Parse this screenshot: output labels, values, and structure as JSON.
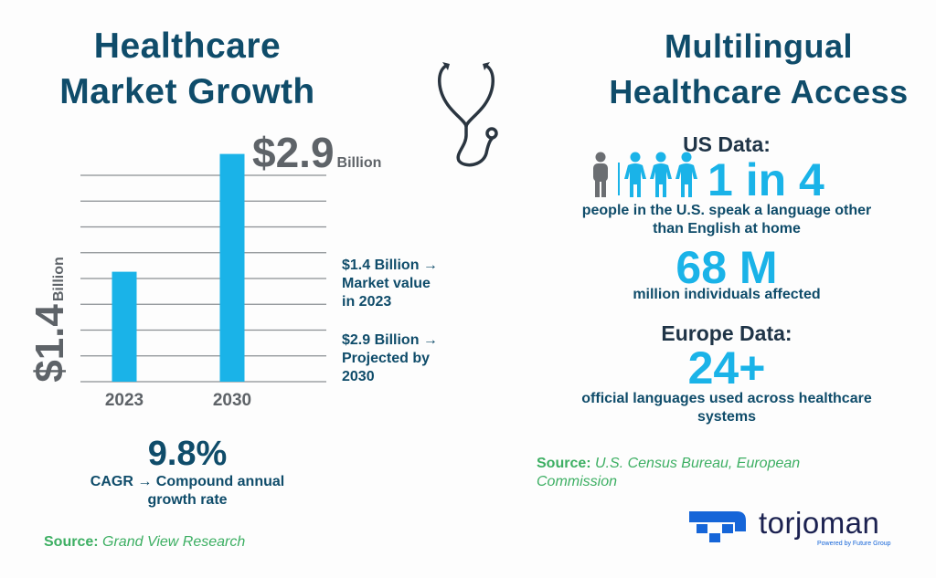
{
  "left": {
    "title_line1": "Healthcare",
    "title_line2": "Market Growth",
    "top_value": "$2.9",
    "top_unit": "Billion",
    "side_value": "$1.4",
    "side_unit": "Billion",
    "notes": [
      [
        "$1.4 Billion →",
        "Market value",
        "in 2023"
      ],
      [
        "$2.9 Billion →",
        "Projected by",
        "2030"
      ]
    ],
    "cagr_value": "9.8%",
    "cagr_line1": "CAGR → Compound annual",
    "cagr_line2": "growth rate",
    "source_label": "Source:",
    "source_text": "Grand View Research"
  },
  "right": {
    "title_line1": "Multilingual",
    "title_line2": "Healthcare Access",
    "us_heading": "US Data:",
    "ratio": "1 in 4",
    "ratio_desc1": "people in the U.S. speak a language other",
    "ratio_desc2": "than English at home",
    "count": "68 M",
    "count_desc": "million individuals affected",
    "europe_heading": "Europe Data:",
    "languages": "24+",
    "languages_desc1": "official languages used across healthcare",
    "languages_desc2": "systems",
    "source_label": "Source:",
    "source_line1": "U.S. Census Bureau, European",
    "source_line2": "Commission"
  },
  "logo": {
    "name": "torjoman",
    "tagline": "Powered by Future Group"
  },
  "colors": {
    "title": "#0f4c6a",
    "accent": "#1ab3e8",
    "gray": "#5e6368",
    "source": "#3daf63",
    "brand": "#1565d8"
  },
  "chart_data": {
    "type": "bar",
    "title": "Healthcare Market Growth",
    "categories": [
      "2023",
      "2030"
    ],
    "values": [
      1.4,
      2.9
    ],
    "unit": "Billion USD",
    "ylim": [
      0,
      2.9
    ],
    "grid": true
  }
}
